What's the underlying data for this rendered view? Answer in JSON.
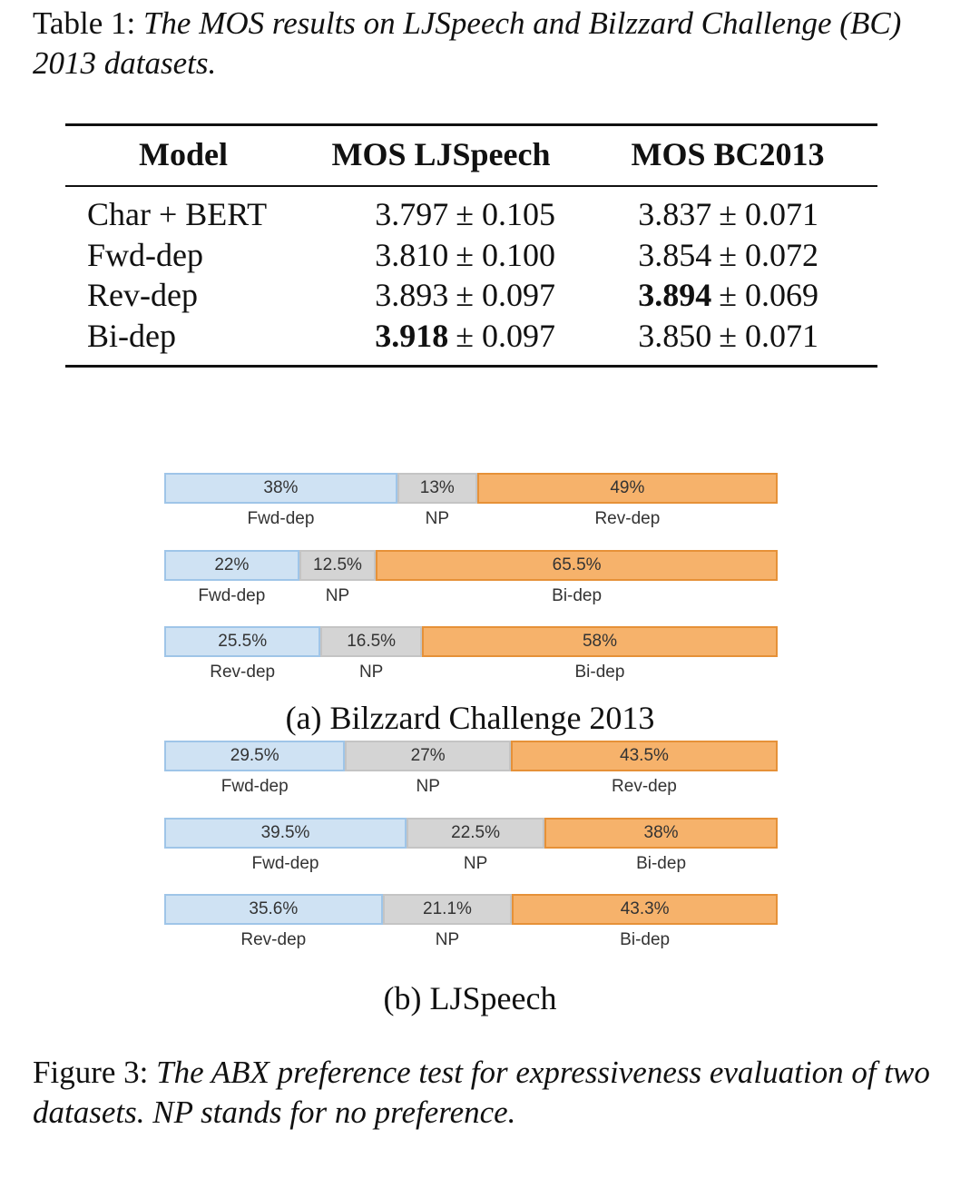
{
  "table_caption": {
    "label": "Table 1:",
    "text": "The MOS results on LJSpeech and Bilzzard Challenge (BC) 2013 datasets."
  },
  "table": {
    "header": [
      "Model",
      "MOS LJSpeech",
      "MOS BC2013"
    ],
    "rows": [
      [
        "Char + BERT",
        {
          "main": "3.797",
          "rest": "± 0.105",
          "bold": false
        },
        {
          "main": "3.837",
          "rest": "± 0.071",
          "bold": false
        }
      ],
      [
        "Fwd-dep",
        {
          "main": "3.810",
          "rest": "± 0.100",
          "bold": false
        },
        {
          "main": "3.854",
          "rest": "± 0.072",
          "bold": false
        }
      ],
      [
        "Rev-dep",
        {
          "main": "3.893",
          "rest": "± 0.097",
          "bold": false
        },
        {
          "main": "3.894",
          "rest": "± 0.069",
          "bold": true
        }
      ],
      [
        "Bi-dep",
        {
          "main": "3.918",
          "rest": "± 0.097",
          "bold": true
        },
        {
          "main": "3.850",
          "rest": "± 0.071",
          "bold": false
        }
      ]
    ]
  },
  "chart_data": [
    {
      "type": "stacked-bar",
      "subtitle": "(a) Bilzzard Challenge 2013",
      "bars": [
        {
          "segments": [
            {
              "name": "Fwd-dep",
              "value": 38,
              "value_label": "38%",
              "color": "#cfe2f3"
            },
            {
              "name": "NP",
              "value": 13,
              "value_label": "13%",
              "color": "#d4d4d4"
            },
            {
              "name": "Rev-dep",
              "value": 49,
              "value_label": "49%",
              "color": "#f6b26b"
            }
          ]
        },
        {
          "segments": [
            {
              "name": "Fwd-dep",
              "value": 22,
              "value_label": "22%",
              "color": "#cfe2f3"
            },
            {
              "name": "NP",
              "value": 12.5,
              "value_label": "12.5%",
              "color": "#d4d4d4"
            },
            {
              "name": "Bi-dep",
              "value": 65.5,
              "value_label": "65.5%",
              "color": "#f6b26b"
            }
          ]
        },
        {
          "segments": [
            {
              "name": "Rev-dep",
              "value": 25.5,
              "value_label": "25.5%",
              "color": "#cfe2f3"
            },
            {
              "name": "NP",
              "value": 16.5,
              "value_label": "16.5%",
              "color": "#d4d4d4"
            },
            {
              "name": "Bi-dep",
              "value": 58,
              "value_label": "58%",
              "color": "#f6b26b"
            }
          ]
        }
      ]
    },
    {
      "type": "stacked-bar",
      "subtitle": "(b) LJSpeech",
      "bars": [
        {
          "segments": [
            {
              "name": "Fwd-dep",
              "value": 29.5,
              "value_label": "29.5%",
              "color": "#cfe2f3"
            },
            {
              "name": "NP",
              "value": 27,
              "value_label": "27%",
              "color": "#d4d4d4"
            },
            {
              "name": "Rev-dep",
              "value": 43.5,
              "value_label": "43.5%",
              "color": "#f6b26b"
            }
          ]
        },
        {
          "segments": [
            {
              "name": "Fwd-dep",
              "value": 39.5,
              "value_label": "39.5%",
              "color": "#cfe2f3"
            },
            {
              "name": "NP",
              "value": 22.5,
              "value_label": "22.5%",
              "color": "#d4d4d4"
            },
            {
              "name": "Bi-dep",
              "value": 38,
              "value_label": "38%",
              "color": "#f6b26b"
            }
          ]
        },
        {
          "segments": [
            {
              "name": "Rev-dep",
              "value": 35.6,
              "value_label": "35.6%",
              "color": "#cfe2f3"
            },
            {
              "name": "NP",
              "value": 21.1,
              "value_label": "21.1%",
              "color": "#d4d4d4"
            },
            {
              "name": "Bi-dep",
              "value": 43.3,
              "value_label": "43.3%",
              "color": "#f6b26b"
            }
          ]
        }
      ]
    }
  ],
  "figure_caption": {
    "label": "Figure 3:",
    "text": "The ABX preference test for expressiveness evaluation of two datasets. NP stands for no preference."
  }
}
